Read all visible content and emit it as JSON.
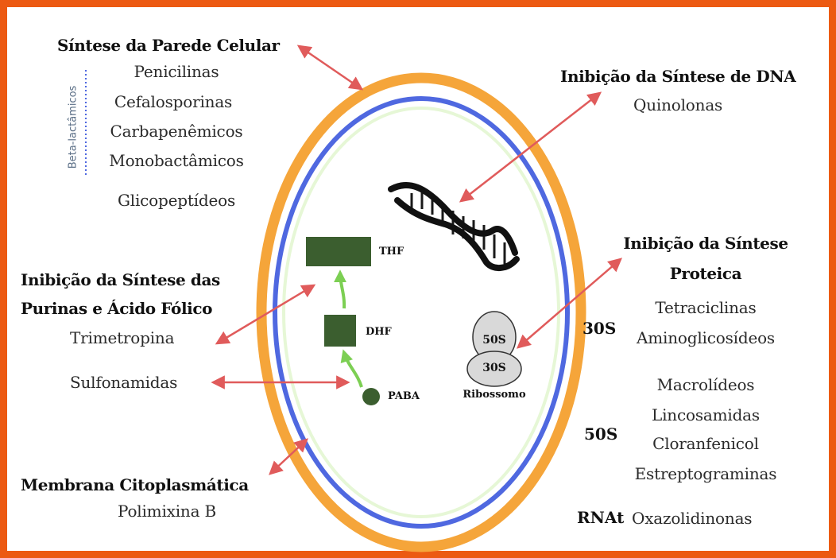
{
  "cell_wall": {
    "title": "Síntese da Parede Celular",
    "group_label": "Beta-lactâmicos",
    "drugs": [
      "Penicilinas",
      "Cefalosporinas",
      "Carbapenêmicos",
      "Monobactâmicos"
    ],
    "other": "Glicopeptídeos"
  },
  "dna": {
    "title": "Inibição da Síntese de DNA",
    "drug": "Quinolonas"
  },
  "protein": {
    "title_line1": "Inibição da Síntese",
    "title_line2": "Proteica",
    "sub_30s": "30S",
    "drugs_30s": [
      "Tetraciclinas",
      "Aminoglicosídeos"
    ],
    "sub_50s": "50S",
    "drugs_50s": [
      "Macrolídeos",
      "Lincosamidas",
      "Cloranfenicol",
      "Estreptograminas"
    ],
    "sub_rnat": "RNAt",
    "drug_rnat": "Oxazolidinonas"
  },
  "folate": {
    "title_line1": "Inibição da Síntese das",
    "title_line2": "Purinas e Ácido Fólico",
    "drug1": "Trimetropina",
    "drug2": "Sulfonamidas"
  },
  "membrane": {
    "title": "Membrana Citoplasmática",
    "drug": "Polimixina B"
  },
  "cell": {
    "thf": "THF",
    "dhf": "DHF",
    "paba": "PABA",
    "ribosome_large": "50S",
    "ribosome_small": "30S",
    "ribosome_label": "Ribossomo"
  },
  "colors": {
    "frame": "#ec5a12",
    "outer_wall": "#f5a53a",
    "membrane": "#4f68e0",
    "inner_ring": "#e6f7d6",
    "arrow": "#e05b5b",
    "folate_blocks": "#3b5e2f",
    "synthesis_arrow": "#7ccf53"
  }
}
